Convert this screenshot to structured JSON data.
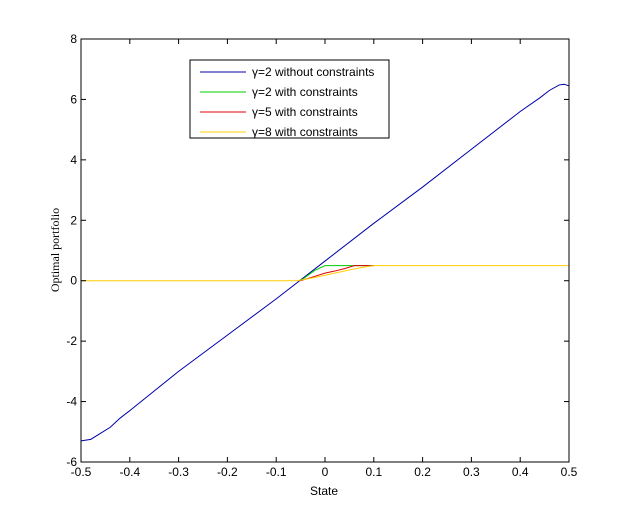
{
  "chart_data": {
    "type": "line",
    "title": "",
    "xlabel": "State",
    "ylabel": "Optimal portfolio",
    "xlim": [
      -0.5,
      0.5
    ],
    "ylim": [
      -6,
      8
    ],
    "xticks": [
      -0.5,
      -0.4,
      -0.3,
      -0.2,
      -0.1,
      0,
      0.1,
      0.2,
      0.3,
      0.4,
      0.5
    ],
    "xtick_labels": [
      "-0.5",
      "-0.4",
      "-0.3",
      "-0.2",
      "-0.1",
      "0",
      "0.1",
      "0.2",
      "0.3",
      "0.4",
      "0.5"
    ],
    "yticks": [
      -6,
      -4,
      -2,
      0,
      2,
      4,
      6,
      8
    ],
    "ytick_labels": [
      "-6",
      "-4",
      "-2",
      "0",
      "2",
      "4",
      "6",
      "8"
    ],
    "grid": false,
    "legend_position": "top-center",
    "series": [
      {
        "name": "γ=2 without constraints",
        "color": "#0000aa",
        "x": [
          -0.5,
          -0.48,
          -0.46,
          -0.44,
          -0.42,
          -0.4,
          -0.3,
          -0.2,
          -0.1,
          0.0,
          0.1,
          0.2,
          0.3,
          0.4,
          0.44,
          0.46,
          0.48,
          0.49,
          0.5
        ],
        "y": [
          -5.3,
          -5.25,
          -5.05,
          -4.85,
          -4.55,
          -4.3,
          -3.0,
          -1.8,
          -0.6,
          0.65,
          1.9,
          3.1,
          4.35,
          5.6,
          6.05,
          6.3,
          6.48,
          6.5,
          6.45
        ]
      },
      {
        "name": "γ=2 with constraints",
        "color": "#00cc00",
        "x": [
          -0.05,
          -0.04,
          -0.02,
          0.0,
          0.02,
          0.04,
          0.06,
          0.1
        ],
        "y": [
          0.0,
          0.12,
          0.35,
          0.5,
          0.5,
          0.5,
          0.5,
          0.5
        ]
      },
      {
        "name": "γ=5 with constraints",
        "color": "#dd0000",
        "x": [
          -0.05,
          -0.04,
          -0.02,
          0.0,
          0.02,
          0.04,
          0.06,
          0.08,
          0.1
        ],
        "y": [
          0.0,
          0.05,
          0.15,
          0.25,
          0.32,
          0.4,
          0.5,
          0.5,
          0.5
        ]
      },
      {
        "name": "γ=8 with constraints",
        "color": "#ffcc00",
        "x": [
          -0.5,
          -0.1,
          -0.06,
          -0.05,
          -0.04,
          -0.02,
          0.0,
          0.02,
          0.04,
          0.06,
          0.08,
          0.1,
          0.2,
          0.3,
          0.4,
          0.5
        ],
        "y": [
          0.0,
          0.0,
          0.0,
          0.02,
          0.05,
          0.11,
          0.18,
          0.25,
          0.32,
          0.39,
          0.45,
          0.5,
          0.5,
          0.5,
          0.5,
          0.5
        ]
      }
    ]
  }
}
